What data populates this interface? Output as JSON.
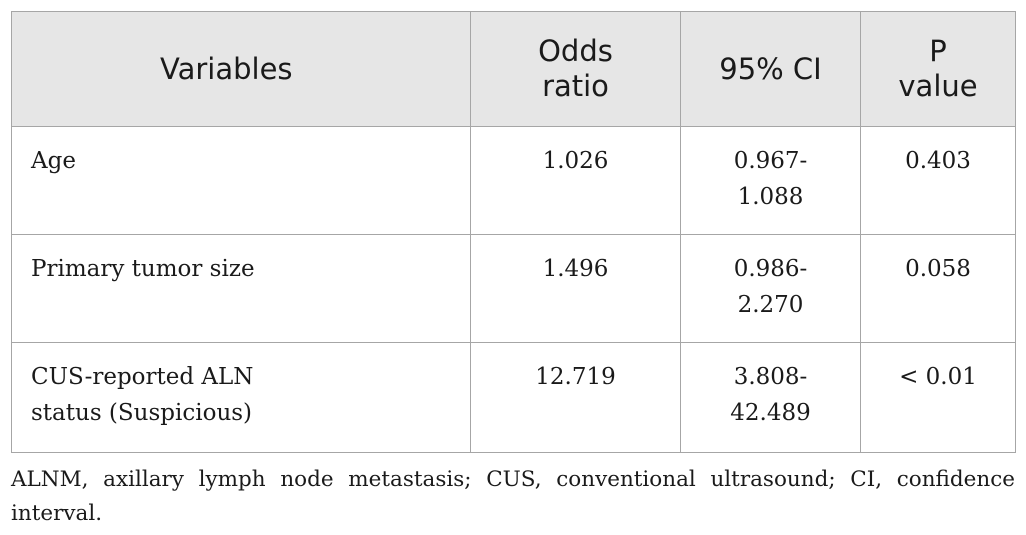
{
  "table": {
    "headers": [
      "Variables",
      "Odds ratio",
      "95% CI",
      "P value"
    ],
    "rows": [
      {
        "variable": "Age",
        "odds_ratio": "1.026",
        "ci": "0.967-\n1.088",
        "p_value": "0.403"
      },
      {
        "variable": "Primary tumor size",
        "odds_ratio": "1.496",
        "ci": "0.986-\n2.270",
        "p_value": "0.058"
      },
      {
        "variable": "CUS-reported ALN\nstatus (Suspicious)",
        "odds_ratio": "12.719",
        "ci": "3.808-\n42.489",
        "p_value": "< 0.01"
      }
    ]
  },
  "footnote": "ALNM, axillary lymph node metastasis; CUS, conventional ultrasound; CI, confidence interval."
}
